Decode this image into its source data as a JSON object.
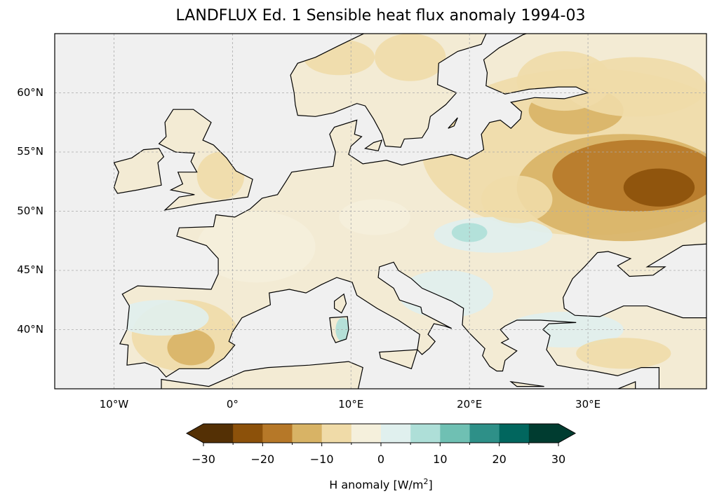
{
  "title": "LANDFLUX Ed. 1 Sensible heat flux anomaly 1994-03",
  "map": {
    "extent_lon": [
      -15,
      40
    ],
    "extent_lat": [
      35,
      65
    ],
    "lat_ticks": [
      {
        "value": 60,
        "label": "60°N"
      },
      {
        "value": 55,
        "label": "55°N"
      },
      {
        "value": 50,
        "label": "50°N"
      },
      {
        "value": 45,
        "label": "45°N"
      },
      {
        "value": 40,
        "label": "40°N"
      }
    ],
    "lon_ticks": [
      {
        "value": -10,
        "label": "10°W"
      },
      {
        "value": 0,
        "label": "0°"
      },
      {
        "value": 10,
        "label": "10°E"
      },
      {
        "value": 20,
        "label": "20°E"
      },
      {
        "value": 30,
        "label": "30°E"
      }
    ],
    "ocean_color": "#f0f0f0"
  },
  "colorbar": {
    "label": "H anomaly [W/m",
    "label_sup": "2",
    "label_end": "]",
    "range": [
      -30,
      30
    ],
    "tick_labels": [
      {
        "value": -30,
        "label": "−30"
      },
      {
        "value": -20,
        "label": "−20"
      },
      {
        "value": -10,
        "label": "−10"
      },
      {
        "value": 0,
        "label": "0"
      },
      {
        "value": 10,
        "label": "10"
      },
      {
        "value": 20,
        "label": "20"
      },
      {
        "value": 30,
        "label": "30"
      }
    ],
    "colors": [
      "#543005",
      "#8c510a",
      "#b67828",
      "#d8b365",
      "#f0dba8",
      "#f5f0dc",
      "#e0f0ee",
      "#aedfd8",
      "#6fc0b3",
      "#2e9088",
      "#01665e",
      "#003c30"
    ],
    "extend": "both"
  }
}
